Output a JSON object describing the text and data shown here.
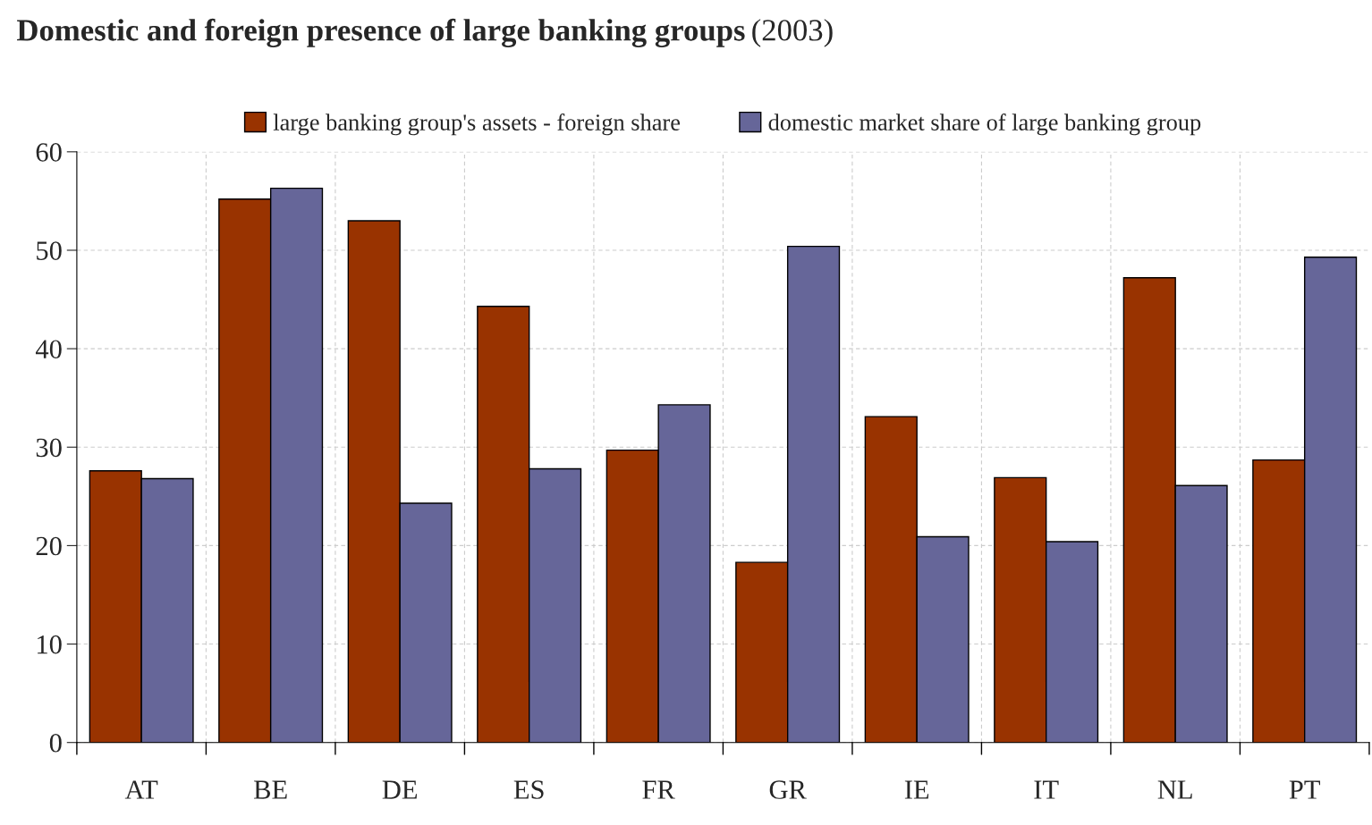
{
  "chart_data": {
    "type": "bar",
    "title": "Domestic and foreign presence of large banking groups",
    "subtitle": "(2003)",
    "categories": [
      "AT",
      "BE",
      "DE",
      "ES",
      "FR",
      "GR",
      "IE",
      "IT",
      "NL",
      "PT"
    ],
    "series": [
      {
        "name": "large banking group's assets - foreign share",
        "color": "#993300",
        "values": [
          27.6,
          55.2,
          53.0,
          44.3,
          29.7,
          18.3,
          33.1,
          26.9,
          47.2,
          28.7
        ]
      },
      {
        "name": "domestic market share of large banking group",
        "color": "#666699",
        "values": [
          26.8,
          56.3,
          24.3,
          27.8,
          34.3,
          50.4,
          20.9,
          20.4,
          26.1,
          49.3
        ]
      }
    ],
    "ylim": [
      0,
      60
    ],
    "yticks": [
      0,
      10,
      20,
      30,
      40,
      50,
      60
    ],
    "grid": true,
    "legend": "top"
  }
}
